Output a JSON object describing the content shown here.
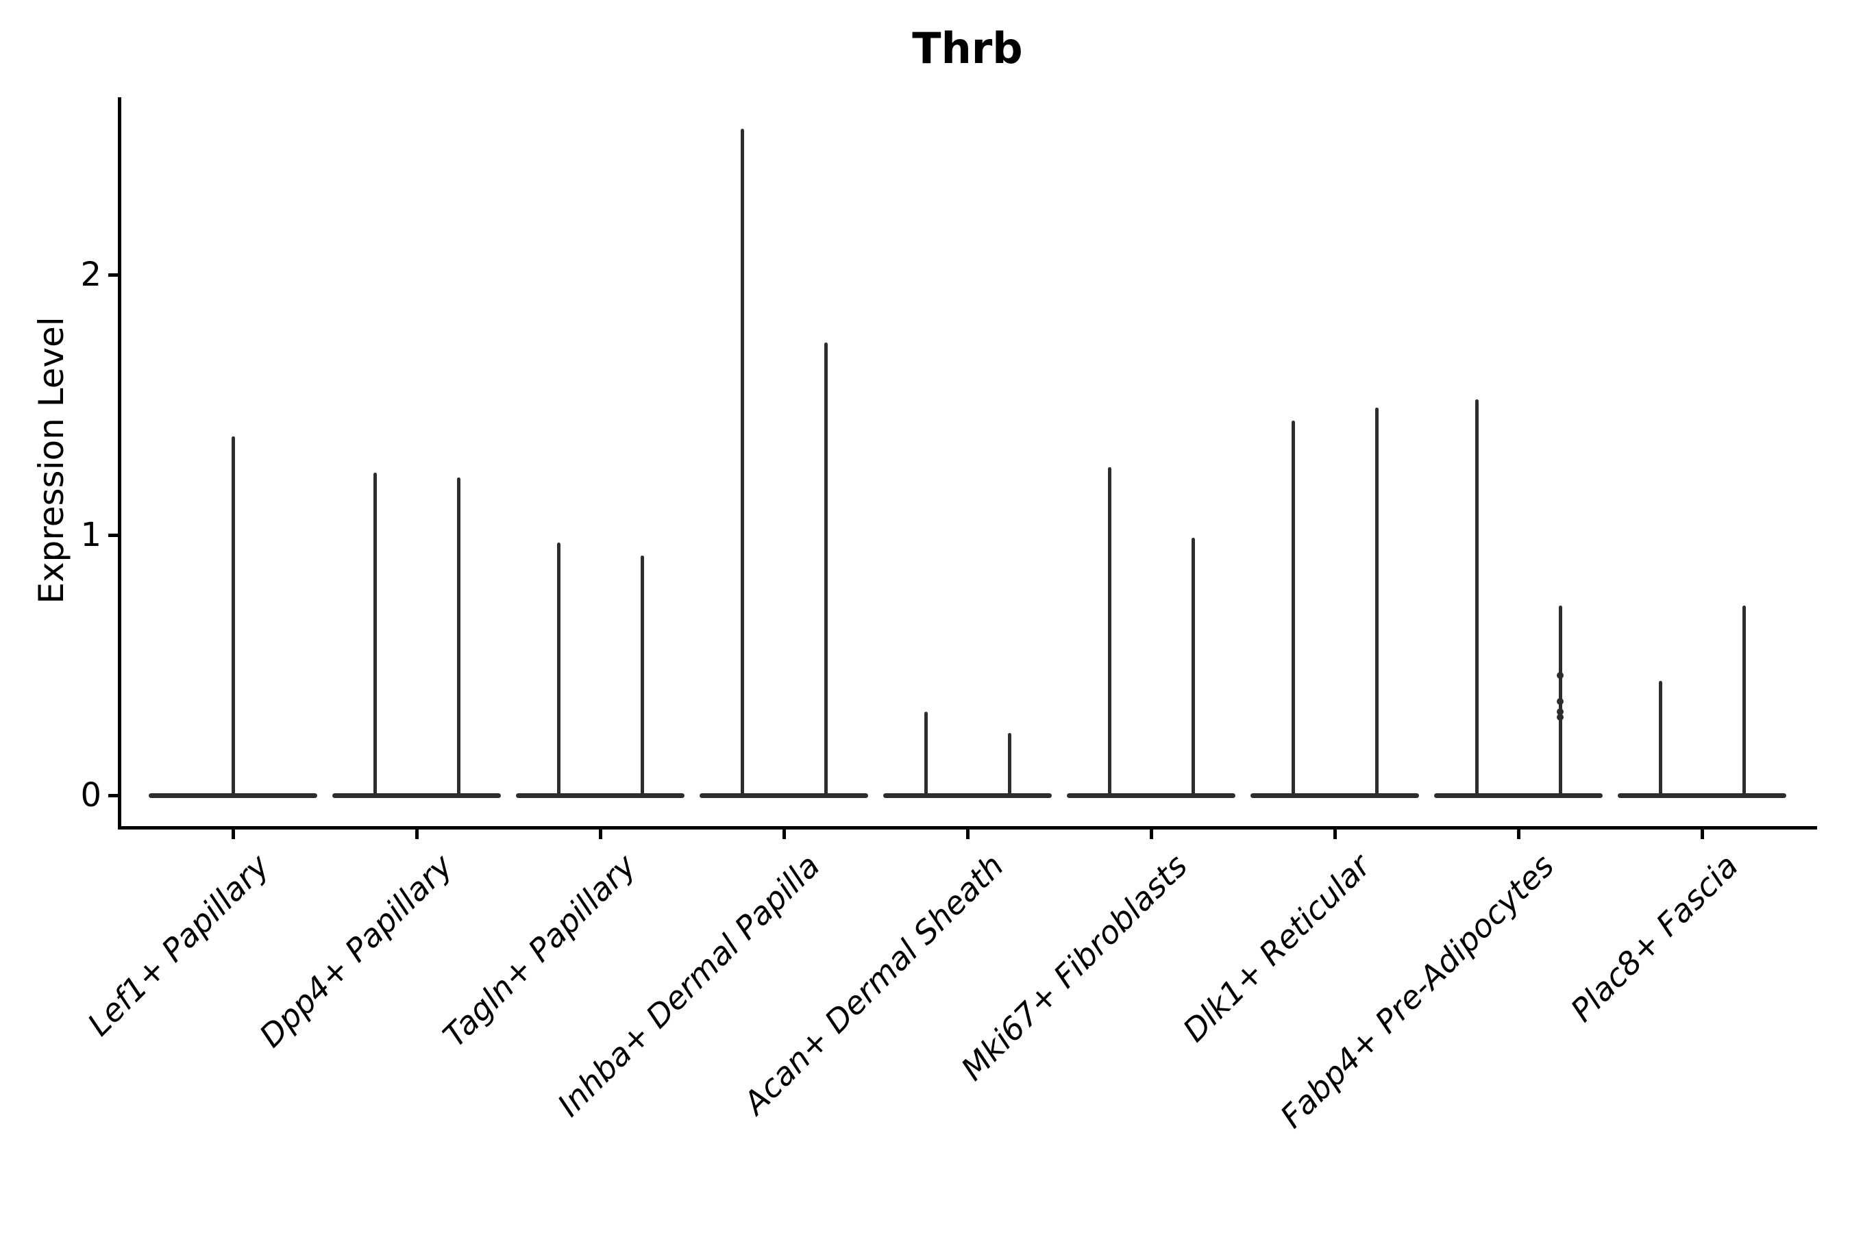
{
  "title": "Thrb",
  "y_axis": {
    "label": "Expression Level"
  },
  "chart_data": {
    "type": "violin",
    "title": "Thrb",
    "xlabel": "",
    "ylabel": "Expression Level",
    "yticks": [
      0,
      1,
      2
    ],
    "ylim": [
      -0.12,
      2.68
    ],
    "grid": "off",
    "legend": "none",
    "categories": [
      "Lef1+ Papillary",
      "Dpp4+ Papillary",
      "Tagln+ Papillary",
      "Inhba+ Dermal Papilla",
      "Acan+ Dermal Sheath",
      "Mki67+ Fibroblasts",
      "Dlk1+ Reticular",
      "Fabp4+ Pre-Adipocytes",
      "Plac8+ Fascia"
    ],
    "violins": [
      {
        "category": "Lef1+ Papillary",
        "body_value": 0,
        "body_rel_width": 0.92,
        "spikes": [
          {
            "rel_offset": 0.0,
            "max": 1.38
          }
        ]
      },
      {
        "category": "Dpp4+ Papillary",
        "body_value": 0,
        "body_rel_width": 0.92,
        "spikes": [
          {
            "rel_offset": -0.225,
            "max": 1.24
          },
          {
            "rel_offset": 0.228,
            "max": 1.22
          }
        ]
      },
      {
        "category": "Tagln+ Papillary",
        "body_value": 0,
        "body_rel_width": 0.92,
        "spikes": [
          {
            "rel_offset": -0.225,
            "max": 0.97
          },
          {
            "rel_offset": 0.228,
            "max": 0.92
          }
        ]
      },
      {
        "category": "Inhba+ Dermal Papilla",
        "body_value": 0,
        "body_rel_width": 0.92,
        "spikes": [
          {
            "rel_offset": -0.225,
            "max": 2.56
          },
          {
            "rel_offset": 0.228,
            "max": 1.74
          }
        ]
      },
      {
        "category": "Acan+ Dermal Sheath",
        "body_value": 0,
        "body_rel_width": 0.92,
        "spikes": [
          {
            "rel_offset": -0.225,
            "max": 0.32
          },
          {
            "rel_offset": 0.228,
            "max": 0.24
          }
        ]
      },
      {
        "category": "Mki67+ Fibroblasts",
        "body_value": 0,
        "body_rel_width": 0.92,
        "spikes": [
          {
            "rel_offset": -0.225,
            "max": 1.26
          },
          {
            "rel_offset": 0.228,
            "max": 0.99
          }
        ]
      },
      {
        "category": "Dlk1+ Reticular",
        "body_value": 0,
        "body_rel_width": 0.92,
        "spikes": [
          {
            "rel_offset": -0.225,
            "max": 1.44
          },
          {
            "rel_offset": 0.228,
            "max": 1.49
          }
        ]
      },
      {
        "category": "Fabp4+ Pre-Adipocytes",
        "body_value": 0,
        "body_rel_width": 0.92,
        "spikes": [
          {
            "rel_offset": -0.225,
            "max": 1.52
          },
          {
            "rel_offset": 0.228,
            "max": 0.73,
            "points": [
              0.46,
              0.36,
              0.32,
              0.3
            ]
          }
        ]
      },
      {
        "category": "Plac8+ Fascia",
        "body_value": 0,
        "body_rel_width": 0.92,
        "spikes": [
          {
            "rel_offset": -0.225,
            "max": 0.44
          },
          {
            "rel_offset": 0.228,
            "max": 0.73
          }
        ]
      }
    ]
  }
}
